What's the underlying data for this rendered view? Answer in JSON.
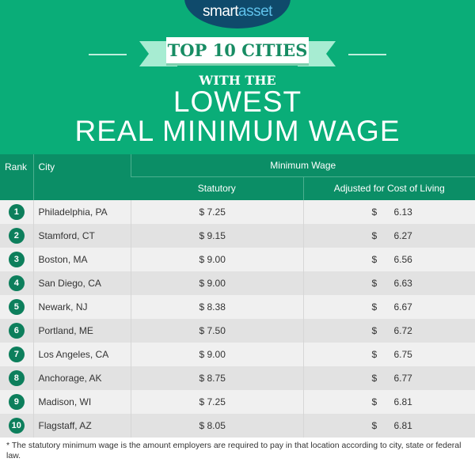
{
  "logo": {
    "part1": "smart",
    "part2": "asset"
  },
  "title": {
    "ribbon": "TOP 10 CITIES",
    "sub": "WITH THE",
    "line1": "LOWEST",
    "line2": "REAL MINIMUM WAGE"
  },
  "colors": {
    "background": "#0aad78",
    "header": "#0b8e66",
    "badge": "#0d7f5c",
    "logo": "#0f4a6b"
  },
  "table": {
    "headers": {
      "rank": "Rank",
      "city": "City",
      "group": "Minimum Wage",
      "statutory": "Statutory",
      "adjusted": "Adjusted for Cost of Living"
    },
    "rows": [
      {
        "rank": "1",
        "city": "Philadelphia, PA",
        "statutory": "$ 7.25",
        "adjusted": "6.13"
      },
      {
        "rank": "2",
        "city": "Stamford, CT",
        "statutory": "$ 9.15",
        "adjusted": "6.27"
      },
      {
        "rank": "3",
        "city": "Boston, MA",
        "statutory": "$ 9.00",
        "adjusted": "6.56"
      },
      {
        "rank": "4",
        "city": "San Diego, CA",
        "statutory": "$ 9.00",
        "adjusted": "6.63"
      },
      {
        "rank": "5",
        "city": "Newark, NJ",
        "statutory": "$ 8.38",
        "adjusted": "6.67"
      },
      {
        "rank": "6",
        "city": "Portland, ME",
        "statutory": "$ 7.50",
        "adjusted": "6.72"
      },
      {
        "rank": "7",
        "city": "Los Angeles, CA",
        "statutory": "$ 9.00",
        "adjusted": "6.75"
      },
      {
        "rank": "8",
        "city": "Anchorage, AK",
        "statutory": "$ 8.75",
        "adjusted": "6.77"
      },
      {
        "rank": "9",
        "city": "Madison, WI",
        "statutory": "$ 7.25",
        "adjusted": "6.81"
      },
      {
        "rank": "10",
        "city": "Flagstaff, AZ",
        "statutory": "$ 8.05",
        "adjusted": "6.81"
      }
    ],
    "currency": "$"
  },
  "footnote": "* The statutory minimum wage is the amount employers are required to pay in that location according to city, state or federal law."
}
